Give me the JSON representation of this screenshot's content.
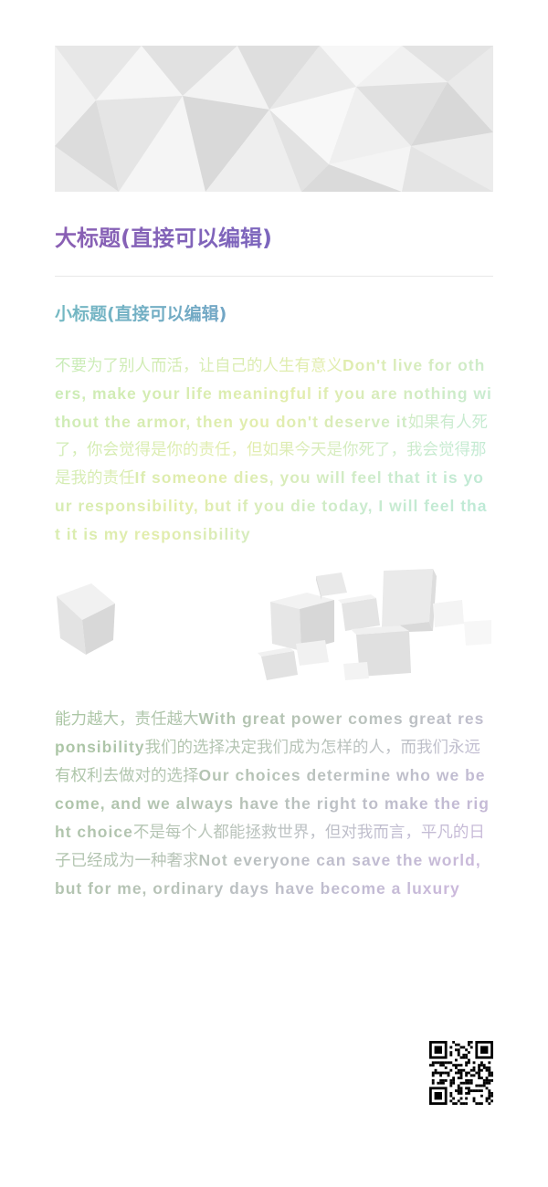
{
  "title": "大标题(直接可以编辑)",
  "subtitle": "小标题(直接可以编辑)",
  "paragraph1": [
    {
      "text": "不要为了别人而活，让自己的人生有意义",
      "bold": false
    },
    {
      "text": "Don't live for others, make your life meaningful if you are nothing without the armor, then you don't deserve it",
      "bold": true
    },
    {
      "text": "如果有人死了，你会觉得是你的责任，但如果今天是你死了，我会觉得那是我的责任",
      "bold": false
    },
    {
      "text": "If someone dies, you will feel that it is your responsibility, but if you die today, I will feel that it is my responsibility",
      "bold": true
    }
  ],
  "paragraph2": [
    {
      "text": "能力越大，责任越大",
      "bold": false
    },
    {
      "text": "With great power comes great responsibility",
      "bold": true
    },
    {
      "text": "我们的选择决定我们成为怎样的人，而我们永远有权利去做对的选择",
      "bold": false
    },
    {
      "text": "Our choices determine who we become, and we always have the right to make the right choice",
      "bold": true
    },
    {
      "text": "不是每个人都能拯救世界，但对我而言，平凡的日子已经成为一种奢求",
      "bold": false
    },
    {
      "text": "Not everyone can save the world, but for me, ordinary days have become a luxury",
      "bold": true
    }
  ],
  "images": {
    "hero": "low-poly-gray-pattern",
    "cubes": "floating-gray-cubes",
    "qr": "qr-code-icon"
  }
}
